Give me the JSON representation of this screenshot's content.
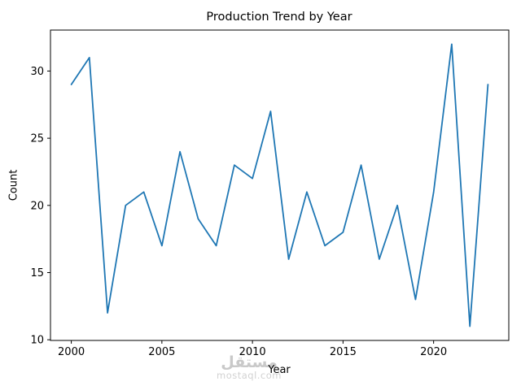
{
  "watermark": {
    "arabic": "مستقل",
    "domain": "mostaql.com"
  },
  "chart_data": {
    "type": "line",
    "title": "Production Trend by Year",
    "xlabel": "Year",
    "ylabel": "Count",
    "x": [
      2000,
      2001,
      2002,
      2003,
      2004,
      2005,
      2006,
      2007,
      2008,
      2009,
      2010,
      2011,
      2012,
      2013,
      2014,
      2015,
      2016,
      2017,
      2018,
      2019,
      2020,
      2021,
      2022,
      2023
    ],
    "values": [
      29,
      31,
      12,
      20,
      21,
      17,
      24,
      19,
      17,
      23,
      22,
      27,
      16,
      21,
      17,
      18,
      23,
      16,
      20,
      13,
      21,
      32,
      11,
      29
    ],
    "xticks": [
      2000,
      2005,
      2010,
      2015,
      2020
    ],
    "yticks": [
      10,
      15,
      20,
      25,
      30
    ],
    "xlim": [
      1998.85,
      2024.15
    ],
    "ylim": [
      9.95,
      33.05
    ],
    "grid": false,
    "legend": "none",
    "line_color": "#1f77b4",
    "axis_color": "#000000"
  }
}
